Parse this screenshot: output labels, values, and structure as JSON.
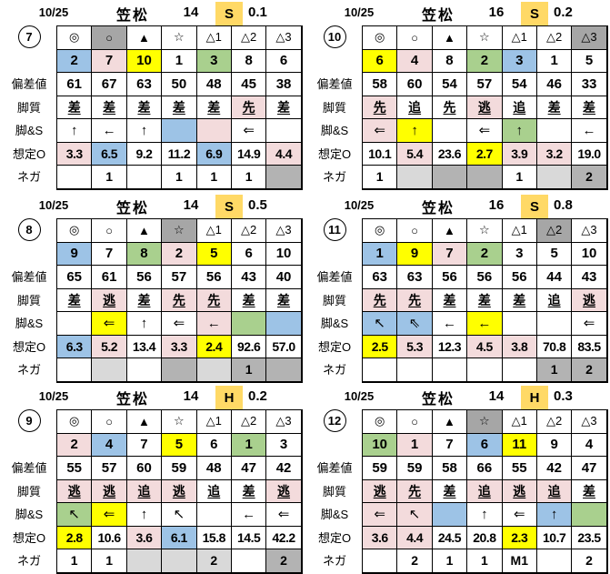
{
  "palette": {
    "blue": "#9DC3E6",
    "pink": "#F3DBDC",
    "yellow": "#FFFF00",
    "green": "#A9D08E",
    "gray": "#A6A6A6",
    "light": "#D9D9D9",
    "mid": "#B3B3B3",
    "amber": "#FFD966"
  },
  "row_labels": {
    "dev": "偏差値",
    "style": "脚質",
    "arrow": "脚&S",
    "odds": "想定O",
    "nega": "ネガ"
  },
  "tables": [
    {
      "id": "7",
      "header": {
        "date": "10/25",
        "track": "笠松",
        "race": "14",
        "cls": "S",
        "margin": "0.1"
      },
      "columns": [
        {
          "mark": "◎",
          "mark_bg": "",
          "num": "2",
          "num_bg": "blue",
          "dev": "61",
          "style": "差",
          "style_bg": "",
          "arrow": "↑",
          "arrow_bg": "",
          "odds": "3.3",
          "odds_bg": "pink",
          "nega": "",
          "nega_bg": ""
        },
        {
          "mark": "○",
          "mark_bg": "gray",
          "num": "7",
          "num_bg": "pink",
          "dev": "67",
          "style": "差",
          "style_bg": "",
          "arrow": "←",
          "arrow_bg": "",
          "odds": "6.5",
          "odds_bg": "blue",
          "nega": "1",
          "nega_bg": ""
        },
        {
          "mark": "▲",
          "mark_bg": "",
          "num": "10",
          "num_bg": "yellow",
          "dev": "63",
          "style": "差",
          "style_bg": "",
          "arrow": "↑",
          "arrow_bg": "",
          "odds": "9.2",
          "odds_bg": "",
          "nega": "",
          "nega_bg": ""
        },
        {
          "mark": "☆",
          "mark_bg": "",
          "num": "1",
          "num_bg": "",
          "dev": "50",
          "style": "差",
          "style_bg": "",
          "arrow": "",
          "arrow_bg": "blue",
          "odds": "11.2",
          "odds_bg": "",
          "nega": "1",
          "nega_bg": ""
        },
        {
          "mark": "△1",
          "mark_bg": "",
          "num": "3",
          "num_bg": "green",
          "dev": "48",
          "style": "差",
          "style_bg": "",
          "arrow": "",
          "arrow_bg": "pink",
          "odds": "6.9",
          "odds_bg": "blue",
          "nega": "1",
          "nega_bg": ""
        },
        {
          "mark": "△2",
          "mark_bg": "",
          "num": "8",
          "num_bg": "",
          "dev": "45",
          "style": "先",
          "style_bg": "pink",
          "arrow": "⇐",
          "arrow_bg": "",
          "odds": "14.9",
          "odds_bg": "",
          "nega": "1",
          "nega_bg": ""
        },
        {
          "mark": "△3",
          "mark_bg": "",
          "num": "6",
          "num_bg": "",
          "dev": "38",
          "style": "差",
          "style_bg": "",
          "arrow": "",
          "arrow_bg": "",
          "odds": "4.4",
          "odds_bg": "pink",
          "nega": "",
          "nega_bg": "mid"
        }
      ]
    },
    {
      "id": "10",
      "header": {
        "date": "10/25",
        "track": "笠松",
        "race": "16",
        "cls": "S",
        "margin": "0.2"
      },
      "columns": [
        {
          "mark": "◎",
          "mark_bg": "",
          "num": "6",
          "num_bg": "yellow",
          "dev": "58",
          "style": "先",
          "style_bg": "pink",
          "arrow": "⇐",
          "arrow_bg": "pink",
          "odds": "10.1",
          "odds_bg": "",
          "nega": "1",
          "nega_bg": ""
        },
        {
          "mark": "○",
          "mark_bg": "",
          "num": "4",
          "num_bg": "pink",
          "dev": "60",
          "style": "追",
          "style_bg": "",
          "arrow": "↑",
          "arrow_bg": "yellow",
          "odds": "5.4",
          "odds_bg": "pink",
          "nega": "",
          "nega_bg": "light"
        },
        {
          "mark": "▲",
          "mark_bg": "",
          "num": "8",
          "num_bg": "",
          "dev": "54",
          "style": "先",
          "style_bg": "",
          "arrow": "",
          "arrow_bg": "",
          "odds": "23.6",
          "odds_bg": "",
          "nega": "",
          "nega_bg": "mid"
        },
        {
          "mark": "☆",
          "mark_bg": "",
          "num": "2",
          "num_bg": "green",
          "dev": "57",
          "style": "逃",
          "style_bg": "pink",
          "arrow": "⇐",
          "arrow_bg": "",
          "odds": "2.7",
          "odds_bg": "yellow",
          "nega": "",
          "nega_bg": "mid"
        },
        {
          "mark": "△1",
          "mark_bg": "",
          "num": "3",
          "num_bg": "blue",
          "dev": "54",
          "style": "追",
          "style_bg": "",
          "arrow": "↑",
          "arrow_bg": "green",
          "odds": "3.9",
          "odds_bg": "pink",
          "nega": "1",
          "nega_bg": ""
        },
        {
          "mark": "△2",
          "mark_bg": "",
          "num": "1",
          "num_bg": "",
          "dev": "46",
          "style": "差",
          "style_bg": "",
          "arrow": "",
          "arrow_bg": "",
          "odds": "3.2",
          "odds_bg": "pink",
          "nega": "",
          "nega_bg": "light"
        },
        {
          "mark": "△3",
          "mark_bg": "gray",
          "num": "5",
          "num_bg": "",
          "dev": "33",
          "style": "差",
          "style_bg": "",
          "arrow": "←",
          "arrow_bg": "",
          "odds": "19.0",
          "odds_bg": "",
          "nega": "2",
          "nega_bg": "mid"
        }
      ]
    },
    {
      "id": "8",
      "header": {
        "date": "10/25",
        "track": "笠松",
        "race": "14",
        "cls": "S",
        "margin": "0.5"
      },
      "columns": [
        {
          "mark": "◎",
          "mark_bg": "",
          "num": "9",
          "num_bg": "blue",
          "dev": "65",
          "style": "差",
          "style_bg": "",
          "arrow": "",
          "arrow_bg": "",
          "odds": "6.3",
          "odds_bg": "blue",
          "nega": "",
          "nega_bg": ""
        },
        {
          "mark": "○",
          "mark_bg": "",
          "num": "7",
          "num_bg": "",
          "dev": "61",
          "style": "逃",
          "style_bg": "pink",
          "arrow": "⇐",
          "arrow_bg": "yellow",
          "odds": "5.2",
          "odds_bg": "pink",
          "nega": "",
          "nega_bg": "light"
        },
        {
          "mark": "▲",
          "mark_bg": "",
          "num": "8",
          "num_bg": "green",
          "dev": "56",
          "style": "差",
          "style_bg": "",
          "arrow": "↑",
          "arrow_bg": "",
          "odds": "13.4",
          "odds_bg": "",
          "nega": "",
          "nega_bg": ""
        },
        {
          "mark": "☆",
          "mark_bg": "gray",
          "num": "2",
          "num_bg": "pink",
          "dev": "57",
          "style": "先",
          "style_bg": "pink",
          "arrow": "⇐",
          "arrow_bg": "",
          "odds": "3.3",
          "odds_bg": "pink",
          "nega": "",
          "nega_bg": "mid"
        },
        {
          "mark": "△1",
          "mark_bg": "",
          "num": "5",
          "num_bg": "yellow",
          "dev": "56",
          "style": "先",
          "style_bg": "pink",
          "arrow": "←",
          "arrow_bg": "pink",
          "odds": "2.4",
          "odds_bg": "yellow",
          "nega": "",
          "nega_bg": "light"
        },
        {
          "mark": "△2",
          "mark_bg": "",
          "num": "6",
          "num_bg": "",
          "dev": "43",
          "style": "差",
          "style_bg": "",
          "arrow": "",
          "arrow_bg": "green",
          "odds": "92.6",
          "odds_bg": "",
          "nega": "1",
          "nega_bg": "mid"
        },
        {
          "mark": "△3",
          "mark_bg": "",
          "num": "10",
          "num_bg": "",
          "dev": "40",
          "style": "差",
          "style_bg": "",
          "arrow": "",
          "arrow_bg": "blue",
          "odds": "57.0",
          "odds_bg": "",
          "nega": "",
          "nega_bg": "mid"
        }
      ]
    },
    {
      "id": "11",
      "header": {
        "date": "10/25",
        "track": "笠松",
        "race": "16",
        "cls": "S",
        "margin": "0.8"
      },
      "columns": [
        {
          "mark": "◎",
          "mark_bg": "",
          "num": "1",
          "num_bg": "blue",
          "dev": "63",
          "style": "先",
          "style_bg": "pink",
          "arrow": "↖",
          "arrow_bg": "blue",
          "odds": "2.5",
          "odds_bg": "yellow",
          "nega": "",
          "nega_bg": ""
        },
        {
          "mark": "○",
          "mark_bg": "",
          "num": "9",
          "num_bg": "yellow",
          "dev": "63",
          "style": "先",
          "style_bg": "pink",
          "arrow": "⇖",
          "arrow_bg": "blue",
          "odds": "5.3",
          "odds_bg": "pink",
          "nega": "",
          "nega_bg": ""
        },
        {
          "mark": "▲",
          "mark_bg": "",
          "num": "7",
          "num_bg": "pink",
          "dev": "56",
          "style": "差",
          "style_bg": "",
          "arrow": "←",
          "arrow_bg": "",
          "odds": "12.3",
          "odds_bg": "",
          "nega": "",
          "nega_bg": ""
        },
        {
          "mark": "☆",
          "mark_bg": "",
          "num": "2",
          "num_bg": "green",
          "dev": "56",
          "style": "差",
          "style_bg": "",
          "arrow": "←",
          "arrow_bg": "yellow",
          "odds": "4.5",
          "odds_bg": "pink",
          "nega": "",
          "nega_bg": ""
        },
        {
          "mark": "△1",
          "mark_bg": "",
          "num": "3",
          "num_bg": "",
          "dev": "56",
          "style": "差",
          "style_bg": "",
          "arrow": "",
          "arrow_bg": "",
          "odds": "3.8",
          "odds_bg": "pink",
          "nega": "",
          "nega_bg": ""
        },
        {
          "mark": "△2",
          "mark_bg": "gray",
          "num": "5",
          "num_bg": "",
          "dev": "44",
          "style": "追",
          "style_bg": "",
          "arrow": "",
          "arrow_bg": "",
          "odds": "70.8",
          "odds_bg": "",
          "nega": "1",
          "nega_bg": "mid"
        },
        {
          "mark": "△3",
          "mark_bg": "",
          "num": "10",
          "num_bg": "",
          "dev": "43",
          "style": "逃",
          "style_bg": "pink",
          "arrow": "⇐",
          "arrow_bg": "",
          "odds": "83.5",
          "odds_bg": "",
          "nega": "2",
          "nega_bg": "mid"
        }
      ]
    },
    {
      "id": "9",
      "header": {
        "date": "10/25",
        "track": "笠松",
        "race": "14",
        "cls": "H",
        "margin": "0.2"
      },
      "columns": [
        {
          "mark": "◎",
          "mark_bg": "",
          "num": "2",
          "num_bg": "pink",
          "dev": "55",
          "style": "逃",
          "style_bg": "pink",
          "arrow": "↖",
          "arrow_bg": "green",
          "odds": "2.8",
          "odds_bg": "yellow",
          "nega": "1",
          "nega_bg": ""
        },
        {
          "mark": "○",
          "mark_bg": "",
          "num": "4",
          "num_bg": "blue",
          "dev": "57",
          "style": "逃",
          "style_bg": "pink",
          "arrow": "⇐",
          "arrow_bg": "yellow",
          "odds": "10.6",
          "odds_bg": "",
          "nega": "1",
          "nega_bg": ""
        },
        {
          "mark": "▲",
          "mark_bg": "",
          "num": "7",
          "num_bg": "",
          "dev": "60",
          "style": "追",
          "style_bg": "pink",
          "arrow": "↑",
          "arrow_bg": "",
          "odds": "3.6",
          "odds_bg": "pink",
          "nega": "",
          "nega_bg": "light"
        },
        {
          "mark": "☆",
          "mark_bg": "",
          "num": "5",
          "num_bg": "yellow",
          "dev": "59",
          "style": "逃",
          "style_bg": "pink",
          "arrow": "↖",
          "arrow_bg": "",
          "odds": "6.1",
          "odds_bg": "blue",
          "nega": "",
          "nega_bg": "light"
        },
        {
          "mark": "△1",
          "mark_bg": "",
          "num": "6",
          "num_bg": "",
          "dev": "48",
          "style": "追",
          "style_bg": "",
          "arrow": "",
          "arrow_bg": "",
          "odds": "15.8",
          "odds_bg": "",
          "nega": "2",
          "nega_bg": "light"
        },
        {
          "mark": "△2",
          "mark_bg": "",
          "num": "1",
          "num_bg": "green",
          "dev": "47",
          "style": "差",
          "style_bg": "",
          "arrow": "←",
          "arrow_bg": "",
          "odds": "14.5",
          "odds_bg": "",
          "nega": "",
          "nega_bg": ""
        },
        {
          "mark": "△3",
          "mark_bg": "",
          "num": "3",
          "num_bg": "",
          "dev": "42",
          "style": "逃",
          "style_bg": "pink",
          "arrow": "⇐",
          "arrow_bg": "",
          "odds": "42.2",
          "odds_bg": "",
          "nega": "2",
          "nega_bg": "mid"
        }
      ]
    },
    {
      "id": "12",
      "header": {
        "date": "10/25",
        "track": "笠松",
        "race": "14",
        "cls": "H",
        "margin": "0.3"
      },
      "columns": [
        {
          "mark": "◎",
          "mark_bg": "",
          "num": "10",
          "num_bg": "green",
          "dev": "59",
          "style": "逃",
          "style_bg": "pink",
          "arrow": "⇐",
          "arrow_bg": "pink",
          "odds": "3.6",
          "odds_bg": "pink",
          "nega": "",
          "nega_bg": ""
        },
        {
          "mark": "○",
          "mark_bg": "",
          "num": "1",
          "num_bg": "pink",
          "dev": "59",
          "style": "先",
          "style_bg": "pink",
          "arrow": "↖",
          "arrow_bg": "pink",
          "odds": "4.4",
          "odds_bg": "pink",
          "nega": "2",
          "nega_bg": ""
        },
        {
          "mark": "▲",
          "mark_bg": "",
          "num": "7",
          "num_bg": "",
          "dev": "58",
          "style": "差",
          "style_bg": "",
          "arrow": "",
          "arrow_bg": "blue",
          "odds": "24.5",
          "odds_bg": "",
          "nega": "1",
          "nega_bg": ""
        },
        {
          "mark": "☆",
          "mark_bg": "gray",
          "num": "6",
          "num_bg": "blue",
          "dev": "66",
          "style": "追",
          "style_bg": "pink",
          "arrow": "↑",
          "arrow_bg": "",
          "odds": "20.8",
          "odds_bg": "",
          "nega": "1",
          "nega_bg": ""
        },
        {
          "mark": "△1",
          "mark_bg": "",
          "num": "11",
          "num_bg": "yellow",
          "dev": "55",
          "style": "逃",
          "style_bg": "pink",
          "arrow": "⇐",
          "arrow_bg": "",
          "odds": "2.3",
          "odds_bg": "yellow",
          "nega": "M1",
          "nega_bg": ""
        },
        {
          "mark": "△2",
          "mark_bg": "",
          "num": "9",
          "num_bg": "",
          "dev": "42",
          "style": "追",
          "style_bg": "pink",
          "arrow": "↑",
          "arrow_bg": "blue",
          "odds": "10.7",
          "odds_bg": "",
          "nega": "",
          "nega_bg": ""
        },
        {
          "mark": "△3",
          "mark_bg": "",
          "num": "4",
          "num_bg": "",
          "dev": "47",
          "style": "差",
          "style_bg": "",
          "arrow": "",
          "arrow_bg": "green",
          "odds": "23.5",
          "odds_bg": "",
          "nega": "2",
          "nega_bg": ""
        }
      ]
    }
  ]
}
